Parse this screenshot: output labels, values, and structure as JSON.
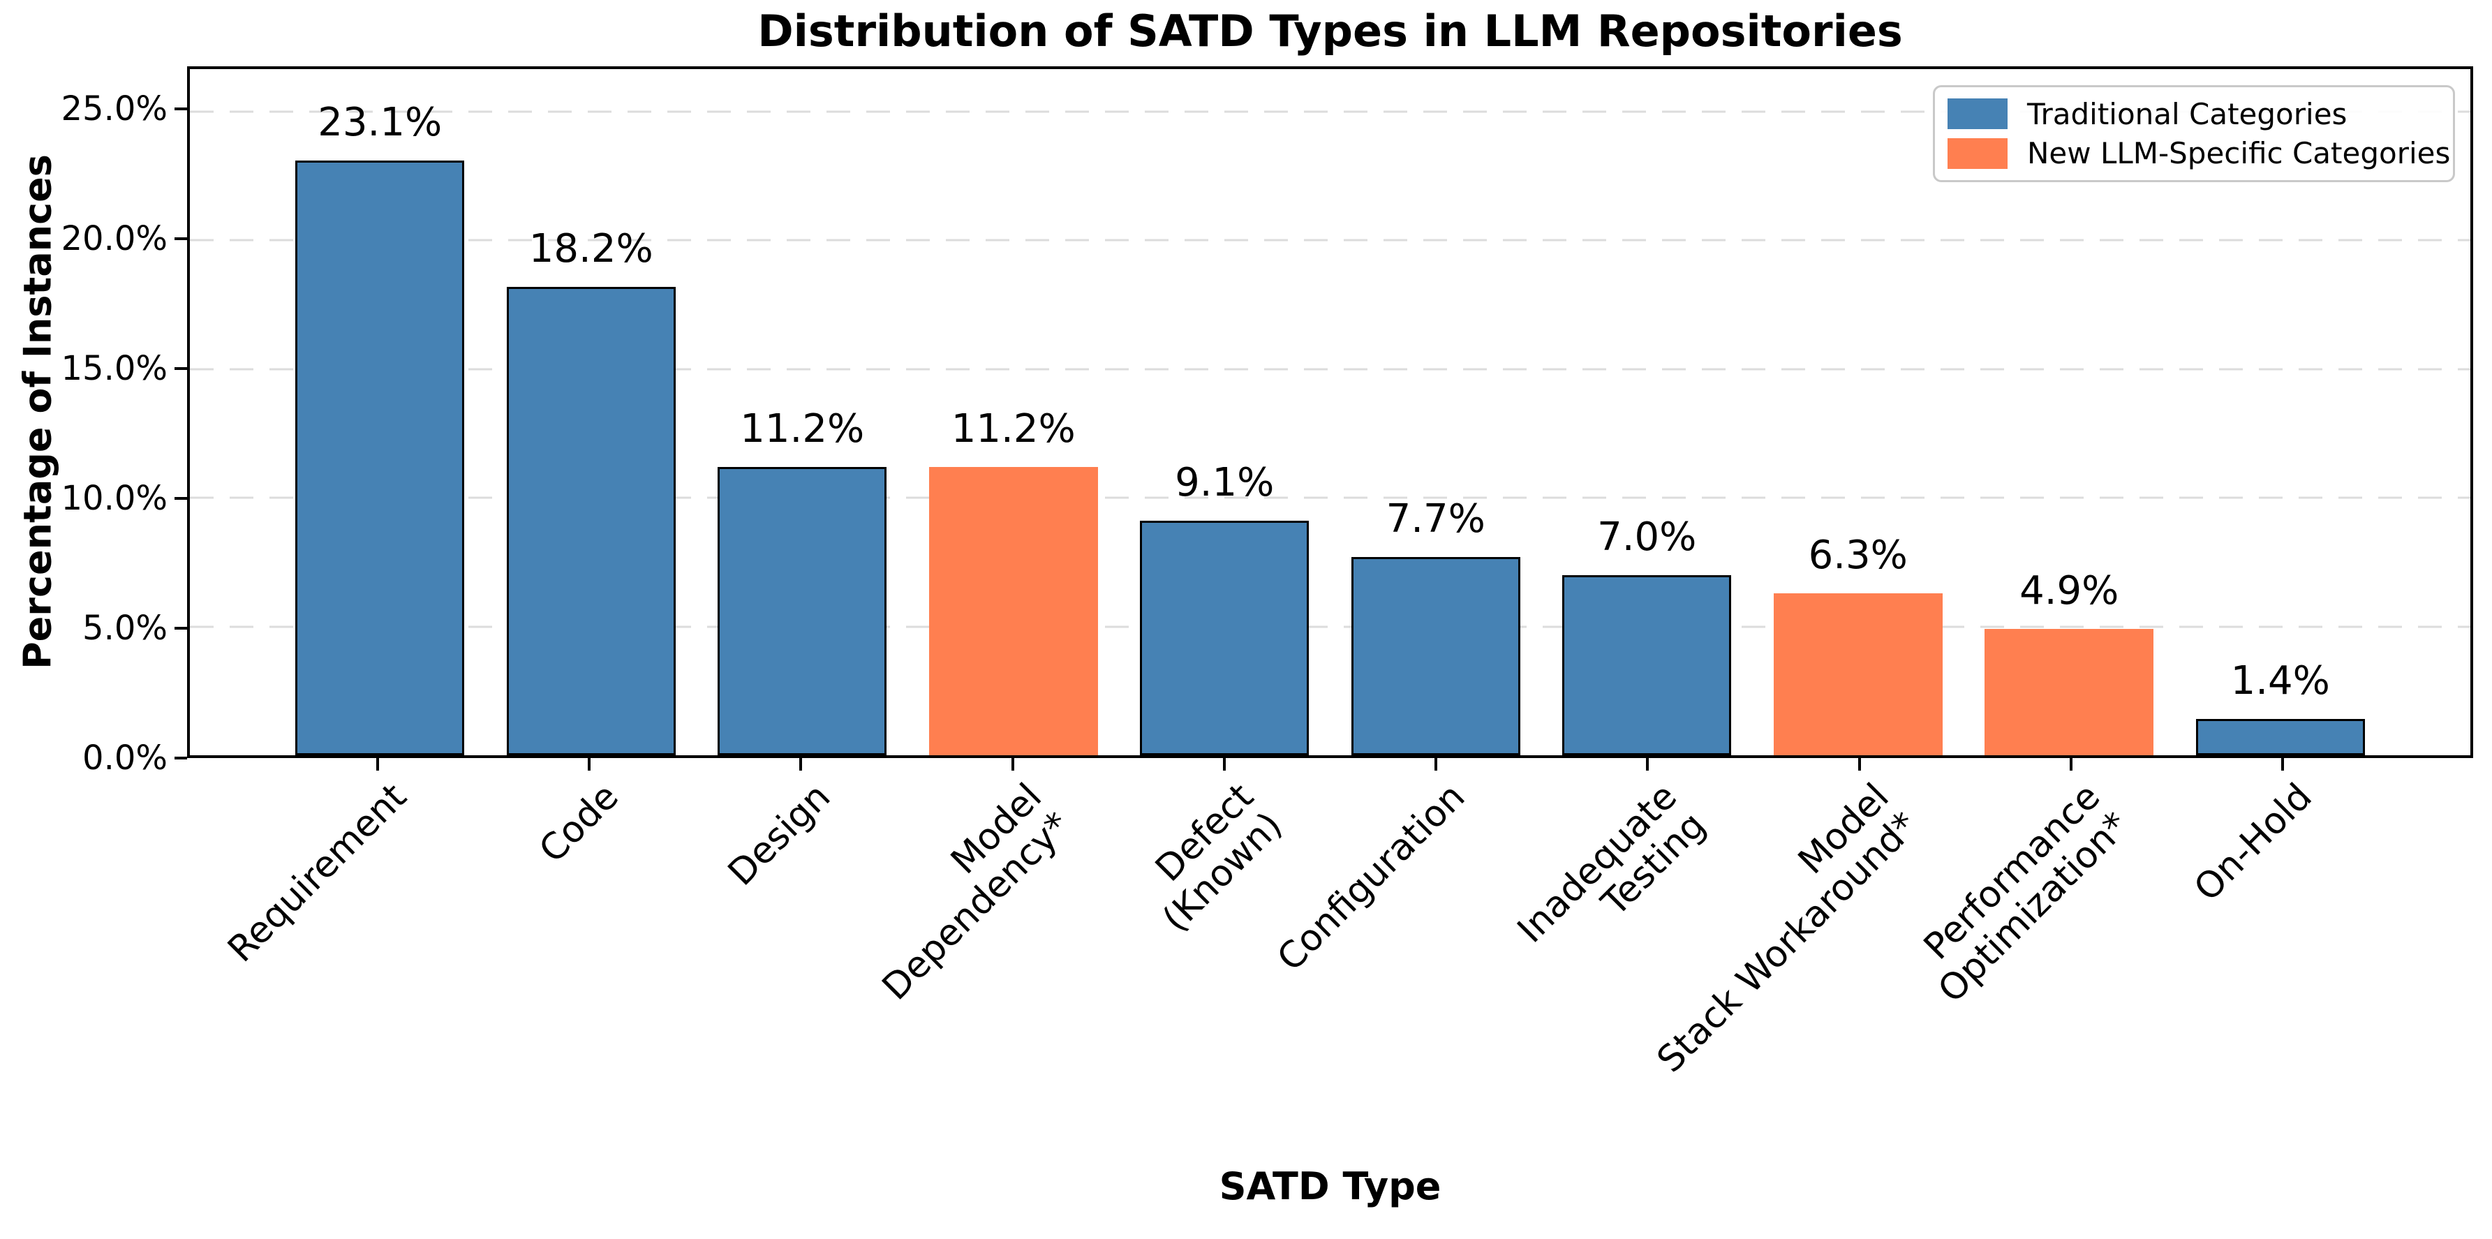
{
  "title": "Distribution of SATD Types in LLM Repositories",
  "chart_data": {
    "type": "bar",
    "title": "Distribution of SATD Types in LLM Repositories",
    "xlabel": "SATD Type",
    "ylabel": "Percentage of Instances",
    "ylim": [
      0,
      26.65
    ],
    "xlim": [
      -0.9,
      9.9
    ],
    "bar_width": 0.8,
    "grid": "horizontal dashed lines at each 5% tick",
    "grid_color": "#dcdcdc",
    "yticks": [
      {
        "value": 0,
        "label": "0.0%"
      },
      {
        "value": 5,
        "label": "5.0%"
      },
      {
        "value": 10,
        "label": "10.0%"
      },
      {
        "value": 15,
        "label": "15.0%"
      },
      {
        "value": 20,
        "label": "20.0%"
      },
      {
        "value": 25,
        "label": "25.0%"
      }
    ],
    "bars": [
      {
        "category": "Requirement",
        "label_lines": [
          "Requirement"
        ],
        "value": 23.1,
        "value_label": "23.1%",
        "series": "Traditional Categories",
        "color": "#4682B4"
      },
      {
        "category": "Code",
        "label_lines": [
          "Code"
        ],
        "value": 18.2,
        "value_label": "18.2%",
        "series": "Traditional Categories",
        "color": "#4682B4"
      },
      {
        "category": "Design",
        "label_lines": [
          "Design"
        ],
        "value": 11.2,
        "value_label": "11.2%",
        "series": "Traditional Categories",
        "color": "#4682B4"
      },
      {
        "category": "Model Dependency*",
        "label_lines": [
          "Model",
          "Dependency*"
        ],
        "value": 11.2,
        "value_label": "11.2%",
        "series": "New LLM-Specific Categories",
        "color": "#FF7F50"
      },
      {
        "category": "Defect (Known)",
        "label_lines": [
          "Defect",
          "(Known)"
        ],
        "value": 9.1,
        "value_label": "9.1%",
        "series": "Traditional Categories",
        "color": "#4682B4"
      },
      {
        "category": "Configuration",
        "label_lines": [
          "Configuration"
        ],
        "value": 7.7,
        "value_label": "7.7%",
        "series": "Traditional Categories",
        "color": "#4682B4"
      },
      {
        "category": "Inadequate Testing",
        "label_lines": [
          "Inadequate",
          "Testing"
        ],
        "value": 7.0,
        "value_label": "7.0%",
        "series": "Traditional Categories",
        "color": "#4682B4"
      },
      {
        "category": "Model Stack Workaround*",
        "label_lines": [
          "Model",
          "Stack Workaround*"
        ],
        "value": 6.3,
        "value_label": "6.3%",
        "series": "New LLM-Specific Categories",
        "color": "#FF7F50"
      },
      {
        "category": "Performance Optimization*",
        "label_lines": [
          "Performance",
          "Optimization*"
        ],
        "value": 4.9,
        "value_label": "4.9%",
        "series": "New LLM-Specific Categories",
        "color": "#FF7F50"
      },
      {
        "category": "On-Hold",
        "label_lines": [
          "On-Hold"
        ],
        "value": 1.4,
        "value_label": "1.4%",
        "series": "Traditional Categories",
        "color": "#4682B4"
      }
    ],
    "legend": {
      "position": "upper right",
      "entries": [
        {
          "label": "Traditional Categories",
          "color": "#4682B4"
        },
        {
          "label": "New LLM-Specific Categories",
          "color": "#FF7F50"
        }
      ]
    },
    "colors": {
      "traditional": "#4682B4",
      "llm_specific": "#FF7F50",
      "bar_edge": "#000000"
    }
  }
}
